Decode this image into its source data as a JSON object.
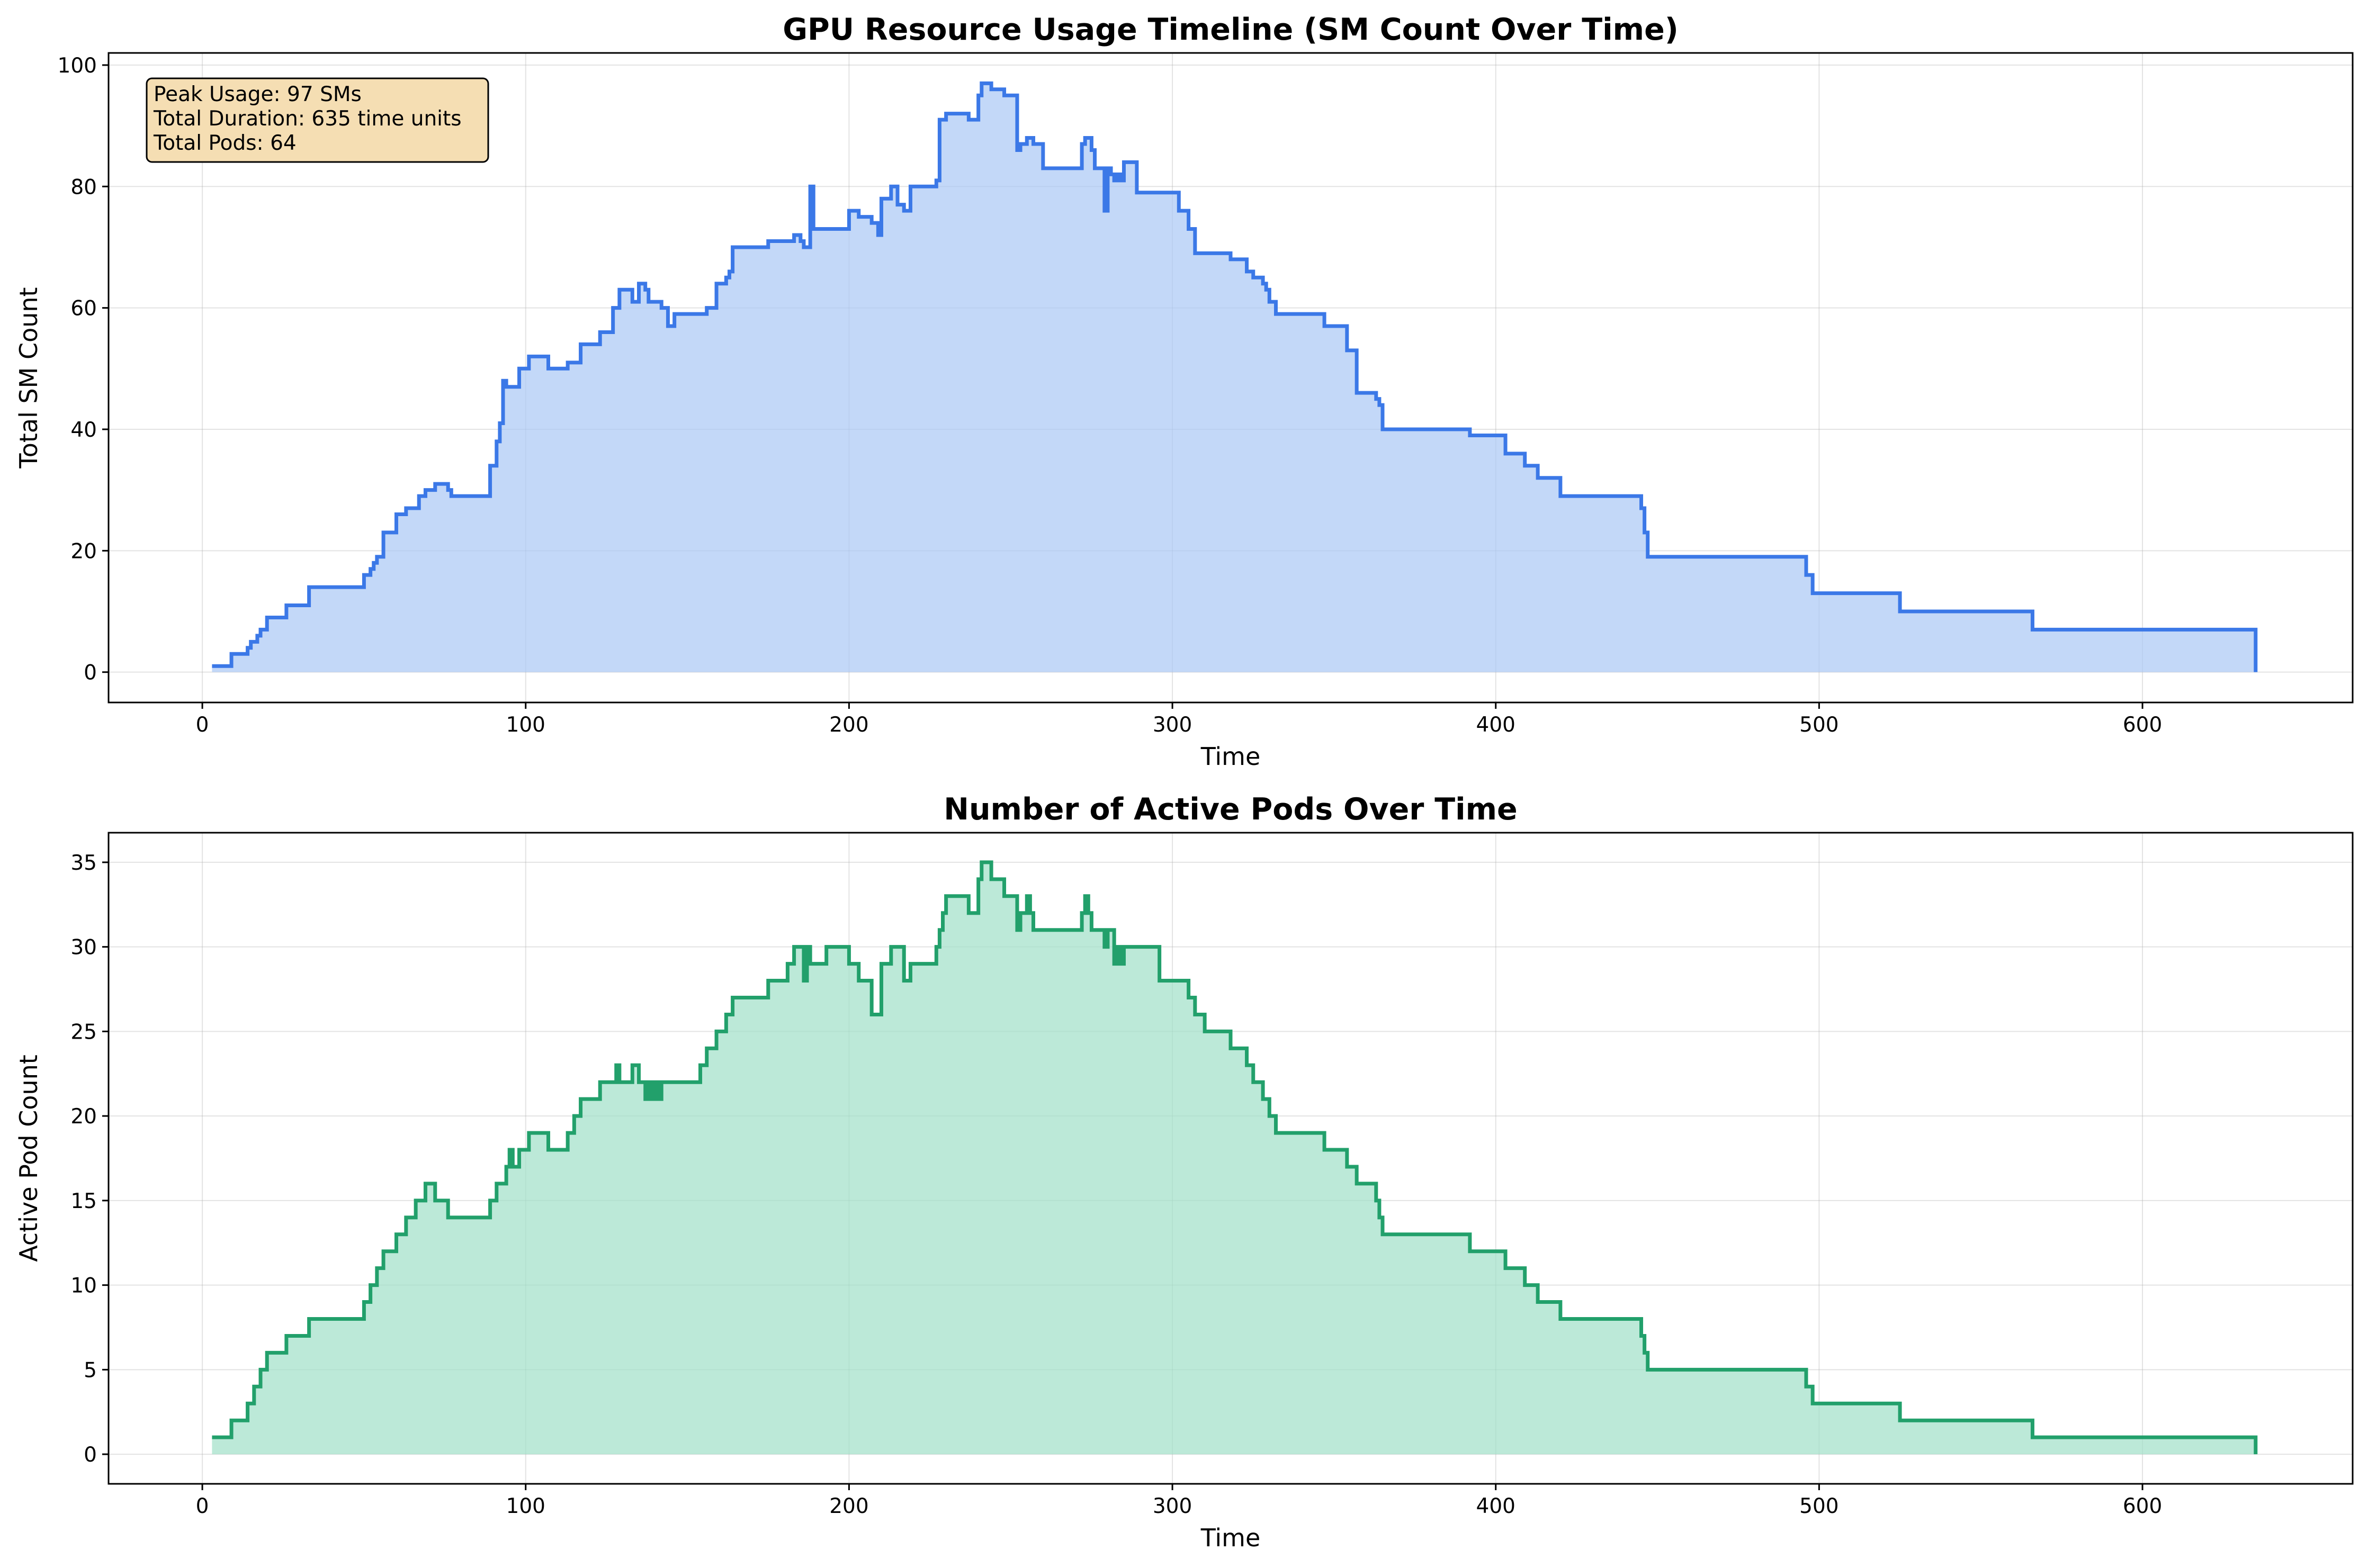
{
  "chart_data": [
    {
      "type": "area",
      "title": "GPU Resource Usage Timeline (SM Count Over Time)",
      "xlabel": "Time",
      "ylabel": "Total SM Count",
      "xlim": [
        -29,
        665
      ],
      "ylim": [
        -5,
        102
      ],
      "xticks": [
        0,
        100,
        200,
        300,
        400,
        500,
        600
      ],
      "yticks": [
        0,
        20,
        40,
        60,
        80,
        100
      ],
      "grid": true,
      "line_color": "#3b78e7",
      "fill_color": "#a9c8f5",
      "annotation": {
        "lines": [
          "Peak Usage: 97 SMs",
          "Total Duration: 635 time units",
          "Total Pods: 64"
        ],
        "placement": "top-left",
        "background": "#f5deb3"
      },
      "series": [
        {
          "step": "post",
          "x": [
            3,
            9,
            14,
            15,
            16,
            17,
            18,
            20,
            26,
            33,
            50,
            52,
            53,
            54,
            56,
            60,
            63,
            67,
            69,
            72,
            76,
            77,
            89,
            91,
            92,
            93,
            94,
            98,
            101,
            107,
            113,
            117,
            123,
            127,
            129,
            133,
            135,
            137,
            138,
            140,
            142,
            144,
            146,
            154,
            156,
            159,
            162,
            163,
            164,
            175,
            181,
            183,
            185,
            186,
            188,
            189,
            193,
            200,
            203,
            207,
            209,
            210,
            213,
            215,
            217,
            219,
            227,
            228,
            230,
            237,
            240,
            241,
            244,
            248,
            252,
            253,
            255,
            257,
            260,
            272,
            273,
            275,
            276,
            279,
            280,
            281,
            282,
            283,
            284,
            285,
            286,
            288,
            289,
            296,
            302,
            305,
            307,
            310,
            311,
            318,
            323,
            325,
            328,
            329,
            330,
            332,
            347,
            354,
            357,
            363,
            364,
            365,
            377,
            392,
            403,
            409,
            413,
            420,
            431,
            445,
            446,
            447,
            469,
            495,
            496,
            498,
            525,
            566,
            635
          ],
          "values": [
            1,
            3,
            4,
            5,
            5,
            6,
            7,
            9,
            11,
            14,
            16,
            17,
            18,
            19,
            23,
            26,
            27,
            29,
            30,
            31,
            30,
            29,
            34,
            38,
            41,
            48,
            47,
            50,
            52,
            50,
            51,
            54,
            56,
            60,
            63,
            61,
            64,
            63,
            61,
            61,
            60,
            57,
            59,
            59,
            60,
            64,
            65,
            66,
            70,
            71,
            71,
            72,
            71,
            70,
            80,
            73,
            73,
            76,
            75,
            74,
            72,
            78,
            80,
            77,
            76,
            80,
            81,
            91,
            92,
            91,
            95,
            97,
            96,
            95,
            86,
            87,
            88,
            87,
            83,
            87,
            88,
            86,
            83,
            76,
            83,
            82,
            81,
            82,
            81,
            84,
            84,
            84,
            79,
            79,
            76,
            73,
            69,
            69,
            69,
            68,
            66,
            65,
            64,
            63,
            61,
            59,
            57,
            53,
            46,
            45,
            44,
            40,
            40,
            39,
            36,
            34,
            32,
            29,
            29,
            27,
            23,
            19,
            19,
            19,
            16,
            13,
            10,
            7,
            0
          ]
        }
      ]
    },
    {
      "type": "area",
      "title": "Number of Active Pods Over Time",
      "xlabel": "Time",
      "ylabel": "Active Pod Count",
      "xlim": [
        -29,
        665
      ],
      "ylim": [
        -1.75,
        36.75
      ],
      "xticks": [
        0,
        100,
        200,
        300,
        400,
        500,
        600
      ],
      "yticks": [
        0,
        5,
        10,
        15,
        20,
        25,
        30,
        35
      ],
      "grid": true,
      "line_color": "#22a06b",
      "fill_color": "#9fe0c8",
      "series": [
        {
          "step": "post",
          "x": [
            3,
            9,
            14,
            15,
            16,
            17,
            18,
            20,
            26,
            33,
            50,
            52,
            53,
            54,
            56,
            60,
            63,
            66,
            69,
            72,
            76,
            77,
            89,
            91,
            94,
            95,
            96,
            98,
            101,
            107,
            113,
            115,
            117,
            123,
            128,
            129,
            131,
            133,
            135,
            137,
            138,
            139,
            140,
            141,
            142,
            144,
            146,
            154,
            156,
            159,
            162,
            163,
            164,
            175,
            181,
            183,
            186,
            187,
            188,
            189,
            193,
            200,
            203,
            207,
            209,
            210,
            213,
            217,
            219,
            227,
            228,
            229,
            230,
            237,
            240,
            241,
            244,
            248,
            252,
            253,
            255,
            256,
            257,
            260,
            272,
            273,
            274,
            275,
            276,
            279,
            280,
            281,
            282,
            283,
            284,
            285,
            286,
            288,
            289,
            296,
            305,
            307,
            310,
            311,
            318,
            323,
            325,
            328,
            329,
            330,
            332,
            347,
            354,
            357,
            363,
            364,
            365,
            377,
            392,
            403,
            409,
            413,
            420,
            431,
            445,
            446,
            447,
            469,
            495,
            496,
            498,
            525,
            566,
            635
          ],
          "values": [
            1,
            2,
            3,
            3,
            4,
            4,
            5,
            6,
            7,
            8,
            9,
            10,
            10,
            11,
            12,
            13,
            14,
            15,
            16,
            15,
            14,
            14,
            15,
            16,
            17,
            18,
            17,
            18,
            19,
            18,
            19,
            20,
            21,
            22,
            23,
            22,
            22,
            23,
            22,
            21,
            22,
            21,
            22,
            21,
            22,
            22,
            22,
            23,
            24,
            25,
            26,
            26,
            27,
            28,
            29,
            30,
            28,
            30,
            29,
            29,
            30,
            29,
            28,
            26,
            26,
            29,
            30,
            28,
            29,
            30,
            31,
            32,
            33,
            32,
            34,
            35,
            34,
            33,
            31,
            32,
            33,
            32,
            31,
            31,
            32,
            33,
            32,
            31,
            31,
            30,
            31,
            31,
            29,
            30,
            29,
            30,
            30,
            30,
            30,
            28,
            27,
            26,
            25,
            25,
            24,
            23,
            22,
            21,
            21,
            20,
            19,
            18,
            17,
            16,
            15,
            14,
            13,
            13,
            12,
            11,
            10,
            9,
            8,
            8,
            7,
            6,
            5,
            5,
            5,
            4,
            3,
            2,
            1,
            0
          ]
        }
      ]
    }
  ]
}
